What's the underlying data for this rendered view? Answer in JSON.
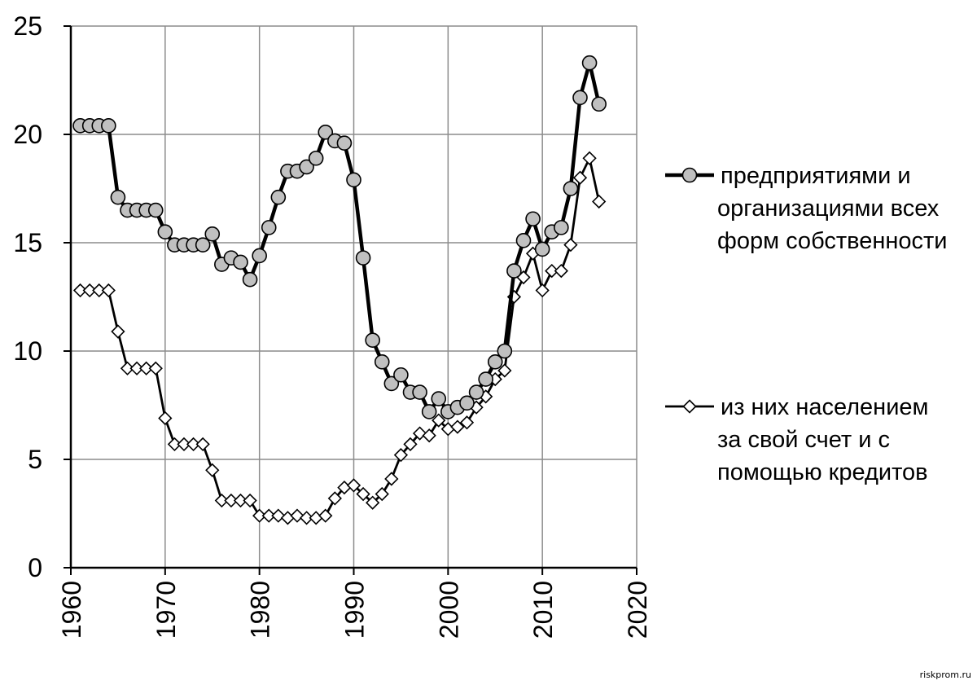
{
  "chart_data": {
    "type": "line",
    "title": "",
    "xlabel": "",
    "ylabel": "",
    "xlim": [
      1960,
      2020
    ],
    "ylim": [
      0,
      25
    ],
    "x_ticks": [
      "1960",
      "1970",
      "1980",
      "1990",
      "2000",
      "2010",
      "2020"
    ],
    "y_ticks": [
      "0",
      "5",
      "10",
      "15",
      "20",
      "25"
    ],
    "grid": true,
    "legend_position": "right",
    "x": [
      1961,
      1962,
      1963,
      1964,
      1965,
      1966,
      1967,
      1968,
      1969,
      1970,
      1971,
      1972,
      1973,
      1974,
      1975,
      1976,
      1977,
      1978,
      1979,
      1980,
      1981,
      1982,
      1983,
      1984,
      1985,
      1986,
      1987,
      1988,
      1989,
      1990,
      1991,
      1992,
      1993,
      1994,
      1995,
      1996,
      1997,
      1998,
      1999,
      2000,
      2001,
      2002,
      2003,
      2004,
      2005,
      2006,
      2007,
      2008,
      2009,
      2010,
      2011,
      2012,
      2013,
      2014,
      2015,
      2016
    ],
    "series": [
      {
        "name": "предприятиями и организациями всех форм собственности",
        "legend_lines": [
          "предприятиями и",
          "организациями всех",
          "форм собственности"
        ],
        "marker": "circle",
        "color": "#000000",
        "marker_fill": "#c0c0c0",
        "values": [
          20.4,
          20.4,
          20.4,
          20.4,
          17.1,
          16.5,
          16.5,
          16.5,
          16.5,
          15.5,
          14.9,
          14.9,
          14.9,
          14.9,
          15.4,
          14.0,
          14.3,
          14.1,
          13.3,
          14.4,
          15.7,
          17.1,
          18.3,
          18.3,
          18.5,
          18.9,
          20.1,
          19.7,
          19.6,
          17.9,
          14.3,
          10.5,
          9.5,
          8.5,
          8.9,
          8.1,
          8.1,
          7.2,
          7.8,
          7.2,
          7.4,
          7.6,
          8.1,
          8.7,
          9.5,
          10.0,
          13.7,
          15.1,
          16.1,
          14.7,
          15.5,
          15.7,
          17.5,
          21.7,
          23.3,
          21.4
        ]
      },
      {
        "name": "из них населением за свой счет и с помощью кредитов",
        "legend_lines": [
          "из них населением",
          "за свой счет и с",
          "помощью кредитов"
        ],
        "marker": "diamond",
        "color": "#000000",
        "marker_fill": "#ffffff",
        "values": [
          12.8,
          12.8,
          12.8,
          12.8,
          10.9,
          9.2,
          9.2,
          9.2,
          9.2,
          6.9,
          5.7,
          5.7,
          5.7,
          5.7,
          4.5,
          3.1,
          3.1,
          3.1,
          3.1,
          2.4,
          2.4,
          2.4,
          2.3,
          2.4,
          2.3,
          2.3,
          2.4,
          3.2,
          3.7,
          3.8,
          3.4,
          3.0,
          3.4,
          4.1,
          5.2,
          5.7,
          6.2,
          6.1,
          6.8,
          6.4,
          6.5,
          6.7,
          7.4,
          7.9,
          8.7,
          9.1,
          12.5,
          13.4,
          14.5,
          12.8,
          13.7,
          13.7,
          14.9,
          18.0,
          18.9,
          16.9
        ]
      }
    ]
  },
  "watermark": "riskprom.ru"
}
